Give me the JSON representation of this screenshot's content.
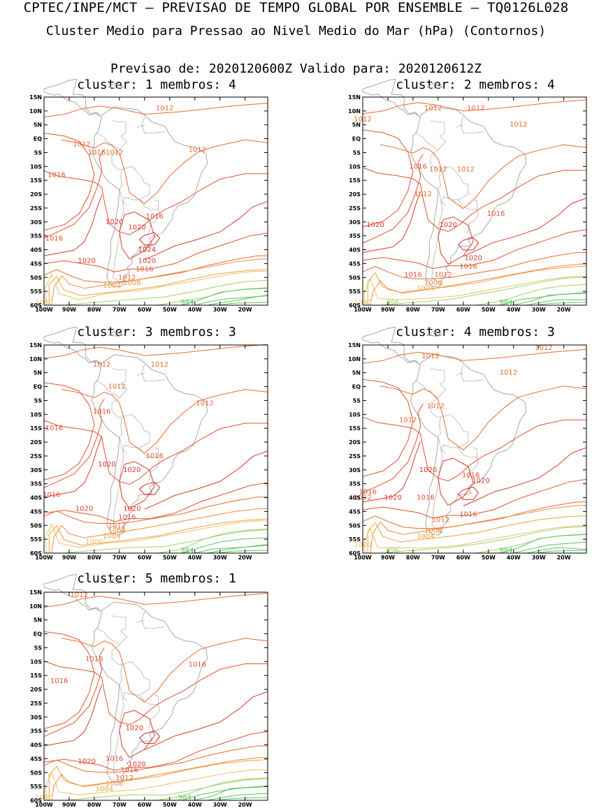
{
  "header": {
    "line1": "CPTEC/INPE/MCT – PREVISAO DE TEMPO GLOBAL POR ENSEMBLE – TQ0126L028",
    "line2": "Cluster Medio para Pressao ao Nivel Medio do Mar (hPa) (Contornos)",
    "line3": "Previsao de: 2020120600Z    Valido para: 2020120612Z"
  },
  "axes": {
    "lat_labels": [
      "15N",
      "10N",
      "5N",
      "EQ",
      "5S",
      "10S",
      "15S",
      "20S",
      "25S",
      "30S",
      "35S",
      "40S",
      "45S",
      "50S",
      "55S",
      "60S"
    ],
    "lon_labels": [
      "100W",
      "90W",
      "80W",
      "70W",
      "60W",
      "50W",
      "40W",
      "30W",
      "20W"
    ]
  },
  "colors": {
    "c984": "#5ec35e",
    "c996": "#a0d36a",
    "c1000": "#e8c36a",
    "c1004": "#f0a040",
    "c1008": "#f08a3a",
    "c1012": "#ea6a2e",
    "c1016": "#e25030",
    "c1020": "#d83a2a",
    "c1024": "#c82a24",
    "land": "#a8a8a8"
  },
  "panels": [
    {
      "title": "cluster: 1   membros: 4",
      "labels": [
        {
          "t": "1012",
          "lon": -52,
          "lat": 11
        },
        {
          "t": "1012",
          "lon": -85,
          "lat": -2
        },
        {
          "t": "1016",
          "lon": -79,
          "lat": -5
        },
        {
          "t": "1012",
          "lon": -72,
          "lat": -5
        },
        {
          "t": "1012",
          "lon": -39,
          "lat": -4
        },
        {
          "t": "1016",
          "lon": -95,
          "lat": -13
        },
        {
          "t": "1016",
          "lon": -56,
          "lat": -28
        },
        {
          "t": "1020",
          "lon": -72,
          "lat": -30
        },
        {
          "t": "1020",
          "lon": -63,
          "lat": -32
        },
        {
          "t": "1024",
          "lon": -59,
          "lat": -40
        },
        {
          "t": "1020",
          "lon": -59,
          "lat": -44
        },
        {
          "t": "1016",
          "lon": -60,
          "lat": -47
        },
        {
          "t": "1016",
          "lon": -96,
          "lat": -36
        },
        {
          "t": "1020",
          "lon": -83,
          "lat": -44
        },
        {
          "t": "1012",
          "lon": -67,
          "lat": -50
        },
        {
          "t": "1008",
          "lon": -65,
          "lat": -52
        },
        {
          "t": "1004",
          "lon": -73,
          "lat": -53
        },
        {
          "t": "984",
          "lon": -43,
          "lat": -59
        },
        {
          "t": "1000",
          "lon": -100,
          "lat": -59
        }
      ]
    },
    {
      "title": "cluster: 2   membros: 4",
      "labels": [
        {
          "t": "1012",
          "lon": -72,
          "lat": 11
        },
        {
          "t": "1012",
          "lon": -55,
          "lat": 11
        },
        {
          "t": "1012",
          "lon": -100,
          "lat": 7
        },
        {
          "t": "1012",
          "lon": -38,
          "lat": 5
        },
        {
          "t": "1016",
          "lon": -78,
          "lat": -10
        },
        {
          "t": "1012",
          "lon": -70,
          "lat": -11
        },
        {
          "t": "1012",
          "lon": -59,
          "lat": -11
        },
        {
          "t": "1012",
          "lon": -76,
          "lat": -20
        },
        {
          "t": "1016",
          "lon": -47,
          "lat": -27
        },
        {
          "t": "1020",
          "lon": -95,
          "lat": -31
        },
        {
          "t": "1020",
          "lon": -66,
          "lat": -31
        },
        {
          "t": "1020",
          "lon": -56,
          "lat": -43
        },
        {
          "t": "1016",
          "lon": -58,
          "lat": -46
        },
        {
          "t": "1016",
          "lon": -80,
          "lat": -49
        },
        {
          "t": "1012",
          "lon": -68,
          "lat": -49
        },
        {
          "t": "1008",
          "lon": -72,
          "lat": -52
        },
        {
          "t": "1004",
          "lon": -75,
          "lat": -54
        },
        {
          "t": "996",
          "lon": -88,
          "lat": -59
        },
        {
          "t": "984",
          "lon": -43,
          "lat": -59
        },
        {
          "t": "1000",
          "lon": -100,
          "lat": -59
        }
      ]
    },
    {
      "title": "cluster: 3   membros: 3",
      "labels": [
        {
          "t": "1012",
          "lon": -77,
          "lat": 8
        },
        {
          "t": "1012",
          "lon": -54,
          "lat": 8
        },
        {
          "t": "1012",
          "lon": -71,
          "lat": 0
        },
        {
          "t": "1012",
          "lon": -36,
          "lat": -6
        },
        {
          "t": "1016",
          "lon": -77,
          "lat": -9
        },
        {
          "t": "1016",
          "lon": -96,
          "lat": -15
        },
        {
          "t": "1016",
          "lon": -56,
          "lat": -25
        },
        {
          "t": "1020",
          "lon": -75,
          "lat": -28
        },
        {
          "t": "1020",
          "lon": -65,
          "lat": -30
        },
        {
          "t": "1016",
          "lon": -97,
          "lat": -39
        },
        {
          "t": "1020",
          "lon": -84,
          "lat": -44
        },
        {
          "t": "1020",
          "lon": -65,
          "lat": -44
        },
        {
          "t": "1016",
          "lon": -67,
          "lat": -47
        },
        {
          "t": "1012",
          "lon": -71,
          "lat": -50
        },
        {
          "t": "1008",
          "lon": -71,
          "lat": -52
        },
        {
          "t": "1004",
          "lon": -73,
          "lat": -54
        },
        {
          "t": "1000",
          "lon": -80,
          "lat": -56
        },
        {
          "t": "984",
          "lon": -43,
          "lat": -59
        }
      ]
    },
    {
      "title": "cluster: 4   membros: 3",
      "labels": [
        {
          "t": "1012",
          "lon": -28,
          "lat": 14
        },
        {
          "t": "1012",
          "lon": -73,
          "lat": 11
        },
        {
          "t": "1012",
          "lon": -42,
          "lat": 5
        },
        {
          "t": "1012",
          "lon": -71,
          "lat": -7
        },
        {
          "t": "1012",
          "lon": -82,
          "lat": -12
        },
        {
          "t": "1020",
          "lon": -74,
          "lat": -30
        },
        {
          "t": "1016",
          "lon": -57,
          "lat": -32
        },
        {
          "t": "1020",
          "lon": -53,
          "lat": -34
        },
        {
          "t": "1016",
          "lon": -98,
          "lat": -38
        },
        {
          "t": "1012",
          "lon": -100,
          "lat": -40
        },
        {
          "t": "1020",
          "lon": -88,
          "lat": -40
        },
        {
          "t": "1016",
          "lon": -75,
          "lat": -40
        },
        {
          "t": "1016",
          "lon": -58,
          "lat": -46
        },
        {
          "t": "1012",
          "lon": -69,
          "lat": -48
        },
        {
          "t": "1008",
          "lon": -72,
          "lat": -52
        },
        {
          "t": "1004",
          "lon": -75,
          "lat": -54
        },
        {
          "t": "996",
          "lon": -88,
          "lat": -59
        },
        {
          "t": "984",
          "lon": -43,
          "lat": -59
        },
        {
          "t": "1000",
          "lon": -100,
          "lat": -57
        }
      ]
    },
    {
      "title": "cluster: 5   membros: 1",
      "labels": [
        {
          "t": "1012",
          "lon": -86,
          "lat": 14
        },
        {
          "t": "1016",
          "lon": -80,
          "lat": -9
        },
        {
          "t": "1016",
          "lon": -39,
          "lat": -11
        },
        {
          "t": "1016",
          "lon": -94,
          "lat": -17
        },
        {
          "t": "1020",
          "lon": -64,
          "lat": -34
        },
        {
          "t": "1020",
          "lon": -83,
          "lat": -46
        },
        {
          "t": "1016",
          "lon": -72,
          "lat": -45
        },
        {
          "t": "1020",
          "lon": -63,
          "lat": -47
        },
        {
          "t": "1016",
          "lon": -66,
          "lat": -49
        },
        {
          "t": "1012",
          "lon": -68,
          "lat": -52
        },
        {
          "t": "1008",
          "lon": -72,
          "lat": -54
        },
        {
          "t": "1004",
          "lon": -76,
          "lat": -56
        },
        {
          "t": "1000",
          "lon": -100,
          "lat": -59
        },
        {
          "t": "984",
          "lon": -44,
          "lat": -59
        }
      ]
    }
  ]
}
